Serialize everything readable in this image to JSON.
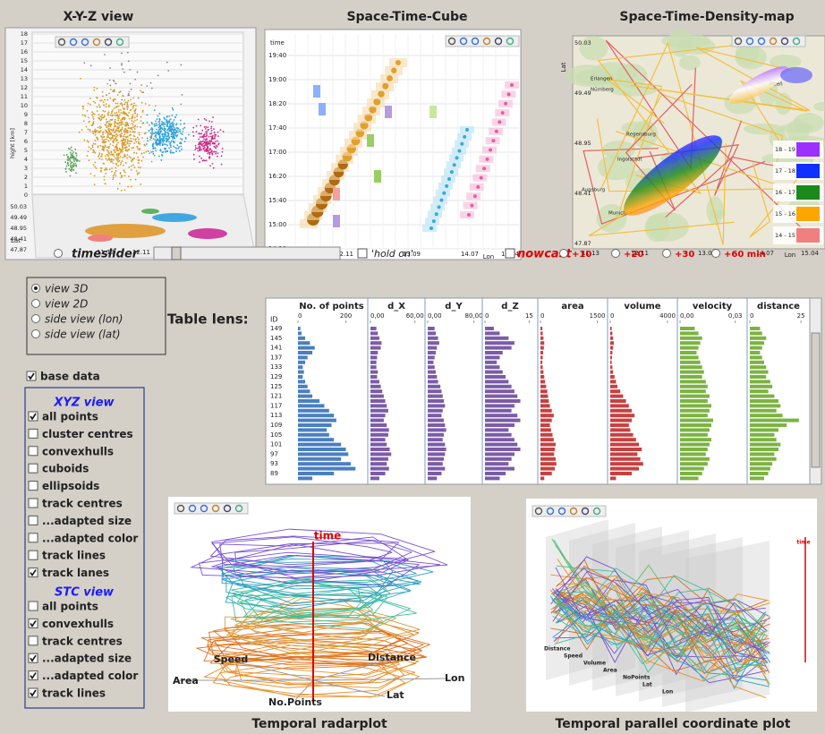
{
  "xyz_view": {
    "title": "X-Y-Z view",
    "y_label": "hight [km]",
    "y_ticks": [
      "18",
      "17",
      "16",
      "15",
      "14",
      "13",
      "12",
      "11",
      "10",
      "9",
      "8",
      "7",
      "6",
      "5",
      "4",
      "3",
      "2",
      "1",
      "0"
    ],
    "lat_label": "Lat",
    "lat_ticks": [
      "50.03",
      "49.49",
      "48.95",
      "48.41",
      "47.87"
    ],
    "lon_label": "Lon",
    "lon_ticks": [
      "11.13",
      "12.11",
      "13.09",
      "14.07",
      "15.04"
    ]
  },
  "space_time_cube": {
    "title": "Space-Time-Cube",
    "time_label": "time",
    "time_ticks": [
      "19:40",
      "19:00",
      "18:20",
      "17:40",
      "17:00",
      "16:20",
      "15:40",
      "15:00",
      "14:20"
    ],
    "lon_label": "Lon",
    "lon_ticks": [
      "11.13",
      "12.11",
      "13.09",
      "14.07",
      "15.04"
    ]
  },
  "density_map": {
    "title": "Space-Time-Density-map",
    "lat_label": "Lat",
    "lat_ticks": [
      "50.03",
      "49.49",
      "48.95",
      "48.41",
      "47.87"
    ],
    "lon_label": "Lon",
    "lon_ticks": [
      "11.13",
      "12.11",
      "13.09",
      "14.07",
      "15.04"
    ],
    "places": [
      "Erlangen",
      "Nürnberg",
      "Regensburg",
      "Ingolstadt",
      "Augsburg",
      "Munich",
      "Plzeň"
    ],
    "legend": [
      {
        "label": "18 - 19",
        "color": "#9b30ff"
      },
      {
        "label": "17 - 18",
        "color": "#1030ff"
      },
      {
        "label": "16 - 17",
        "color": "#1a8a1a"
      },
      {
        "label": "15 - 16",
        "color": "#ffa500"
      },
      {
        "label": "14 - 15",
        "color": "#f08080"
      }
    ]
  },
  "controls": {
    "timeslider": "timeslider",
    "hold_on": "'hold on'",
    "nowcast": "nowcast",
    "offsets": [
      "+10",
      "+20",
      "+30",
      "+60 min"
    ]
  },
  "view_options": {
    "items": [
      "view 3D",
      "view 2D",
      "side view (lon)",
      "side view (lat)"
    ],
    "selected": 0
  },
  "base_data": {
    "label": "base data",
    "checked": true
  },
  "xyz_options": {
    "title": "XYZ view",
    "items": [
      {
        "label": "all points",
        "checked": true
      },
      {
        "label": "cluster centres",
        "checked": false
      },
      {
        "label": "convexhulls",
        "checked": false
      },
      {
        "label": "cuboids",
        "checked": false
      },
      {
        "label": "ellipsoids",
        "checked": false
      },
      {
        "label": "track centres",
        "checked": false
      },
      {
        "label": "...adapted size",
        "checked": false
      },
      {
        "label": "...adapted color",
        "checked": false
      },
      {
        "label": "track lines",
        "checked": false
      },
      {
        "label": "track lanes",
        "checked": true
      }
    ]
  },
  "stc_options": {
    "title": "STC view",
    "items": [
      {
        "label": "all points",
        "checked": false
      },
      {
        "label": "convexhulls",
        "checked": true
      },
      {
        "label": "track centres",
        "checked": false
      },
      {
        "label": "...adapted size",
        "checked": true
      },
      {
        "label": "...adapted color",
        "checked": true
      },
      {
        "label": "track lines",
        "checked": true
      }
    ]
  },
  "table_lens": {
    "label": "Table lens:",
    "id_header": "ID",
    "ids": [
      149,
      145,
      141,
      137,
      133,
      129,
      125,
      121,
      117,
      113,
      109,
      105,
      101,
      97,
      93,
      89
    ],
    "columns": [
      {
        "name": "No. of points",
        "color": "#4a7fc1",
        "xlim": [
          0,
          280
        ],
        "ticks": [
          0,
          200
        ],
        "values": [
          10,
          15,
          30,
          50,
          70,
          60,
          40,
          30,
          20,
          25,
          20,
          30,
          40,
          50,
          60,
          90,
          110,
          130,
          150,
          160,
          140,
          120,
          130,
          150,
          180,
          200,
          210,
          180,
          220,
          240,
          150,
          60
        ]
      },
      {
        "name": "d_X",
        "color": "#7b5ca8",
        "xlim": [
          0,
          70
        ],
        "ticks": [
          {
            "value": 0,
            "label": "0,00"
          },
          {
            "value": 60,
            "label": "60,00"
          }
        ],
        "values": [
          8,
          10,
          12,
          15,
          14,
          10,
          9,
          8,
          8,
          10,
          9,
          12,
          14,
          16,
          18,
          20,
          22,
          24,
          20,
          18,
          22,
          25,
          24,
          20,
          22,
          26,
          28,
          24,
          22,
          25,
          20,
          12
        ]
      },
      {
        "name": "d_Y",
        "color": "#7b5ca8",
        "xlim": [
          0,
          90
        ],
        "ticks": [
          {
            "value": 0,
            "label": "0,00"
          },
          {
            "value": 80,
            "label": "80,00"
          }
        ],
        "values": [
          12,
          14,
          18,
          20,
          16,
          14,
          12,
          10,
          12,
          14,
          16,
          18,
          22,
          24,
          26,
          28,
          30,
          26,
          24,
          28,
          30,
          32,
          28,
          26,
          30,
          32,
          30,
          28,
          26,
          30,
          24,
          16
        ]
      },
      {
        "name": "d_Z",
        "color": "#7b5ca8",
        "xlim": [
          0,
          17
        ],
        "ticks": [
          0,
          15
        ],
        "values": [
          3,
          5,
          8,
          10,
          9,
          6,
          5,
          4,
          5,
          6,
          7,
          8,
          9,
          10,
          11,
          12,
          10,
          9,
          11,
          12,
          10,
          8,
          9,
          10,
          11,
          12,
          10,
          9,
          8,
          10,
          7,
          5
        ]
      },
      {
        "name": "area",
        "color": "#c94040",
        "xlim": [
          0,
          1700
        ],
        "ticks": [
          0,
          1500
        ],
        "values": [
          50,
          60,
          80,
          100,
          90,
          70,
          60,
          50,
          60,
          80,
          100,
          120,
          150,
          180,
          200,
          220,
          250,
          300,
          350,
          300,
          250,
          280,
          320,
          350,
          400,
          380,
          360,
          400,
          420,
          380,
          300,
          100
        ]
      },
      {
        "name": "volume",
        "color": "#c94040",
        "xlim": [
          0,
          4500
        ],
        "ticks": [
          0,
          4000
        ],
        "values": [
          100,
          150,
          200,
          250,
          200,
          150,
          120,
          100,
          150,
          200,
          300,
          400,
          500,
          700,
          900,
          1100,
          1300,
          1500,
          1700,
          1500,
          1300,
          1400,
          1600,
          1800,
          2000,
          2200,
          1900,
          2100,
          2300,
          2000,
          1500,
          400
        ]
      },
      {
        "name": "velocity",
        "color": "#7cb342",
        "xlim": [
          0,
          0.035
        ],
        "ticks": [
          {
            "value": 0,
            "label": "0,00"
          },
          {
            "value": 0.03,
            "label": "0,03"
          }
        ],
        "values": [
          0.008,
          0.01,
          0.012,
          0.011,
          0.01,
          0.009,
          0.01,
          0.011,
          0.012,
          0.013,
          0.012,
          0.014,
          0.015,
          0.014,
          0.016,
          0.015,
          0.017,
          0.016,
          0.015,
          0.018,
          0.017,
          0.016,
          0.015,
          0.017,
          0.016,
          0.015,
          0.014,
          0.016,
          0.015,
          0.013,
          0.012,
          0.01
        ]
      },
      {
        "name": "distance",
        "color": "#7cb342",
        "xlim": [
          0,
          28
        ],
        "ticks": [
          0,
          25
        ],
        "values": [
          5,
          6,
          8,
          7,
          6,
          5,
          6,
          7,
          8,
          9,
          8,
          10,
          11,
          9,
          12,
          14,
          15,
          13,
          16,
          24,
          18,
          14,
          12,
          13,
          15,
          14,
          12,
          13,
          11,
          10,
          9,
          7
        ]
      }
    ]
  },
  "radarplot": {
    "title": "Temporal radarplot",
    "axes": [
      "time",
      "Speed",
      "Distance",
      "Area",
      "Lon",
      "No.Points",
      "Lat"
    ]
  },
  "parallel_plot": {
    "title": "Temporal parallel coordinate plot",
    "axes": [
      "Distance",
      "Speed",
      "Volume",
      "Area",
      "NoPoints",
      "Lat",
      "Lon",
      "time"
    ]
  }
}
